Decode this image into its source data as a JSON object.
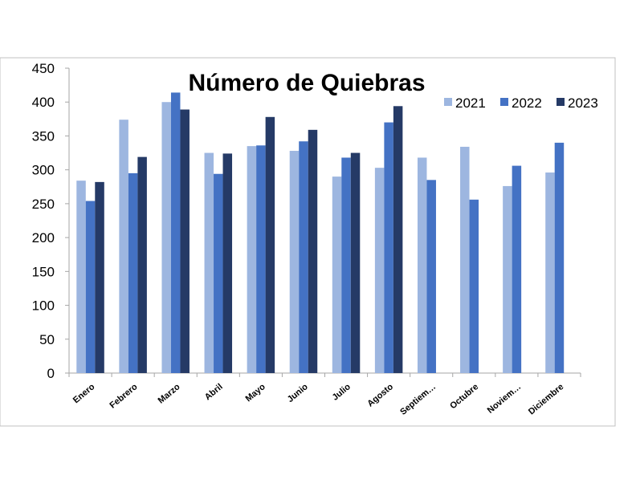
{
  "chart_data": {
    "type": "bar",
    "title": "Número de Quiebras",
    "xlabel": "",
    "ylabel": "",
    "ylim": [
      0,
      450
    ],
    "yticks": [
      0,
      50,
      100,
      150,
      200,
      250,
      300,
      350,
      400,
      450
    ],
    "grid": false,
    "legend_position": "top-right",
    "categories": [
      "Enero",
      "Febrero",
      "Marzo",
      "Abril",
      "Mayo",
      "Junio",
      "Julio",
      "Agosto",
      "Septiem…",
      "Octubre",
      "Noviem…",
      "Diciembre"
    ],
    "series": [
      {
        "name": "2021",
        "color": "#9db6e0",
        "values": [
          284,
          374,
          400,
          325,
          335,
          328,
          290,
          303,
          318,
          334,
          276,
          296
        ]
      },
      {
        "name": "2022",
        "color": "#4472c4",
        "values": [
          254,
          295,
          414,
          294,
          336,
          342,
          318,
          370,
          285,
          256,
          306,
          340
        ]
      },
      {
        "name": "2023",
        "color": "#253a66",
        "values": [
          282,
          319,
          389,
          324,
          378,
          359,
          325,
          394,
          null,
          null,
          null,
          null
        ]
      }
    ]
  }
}
